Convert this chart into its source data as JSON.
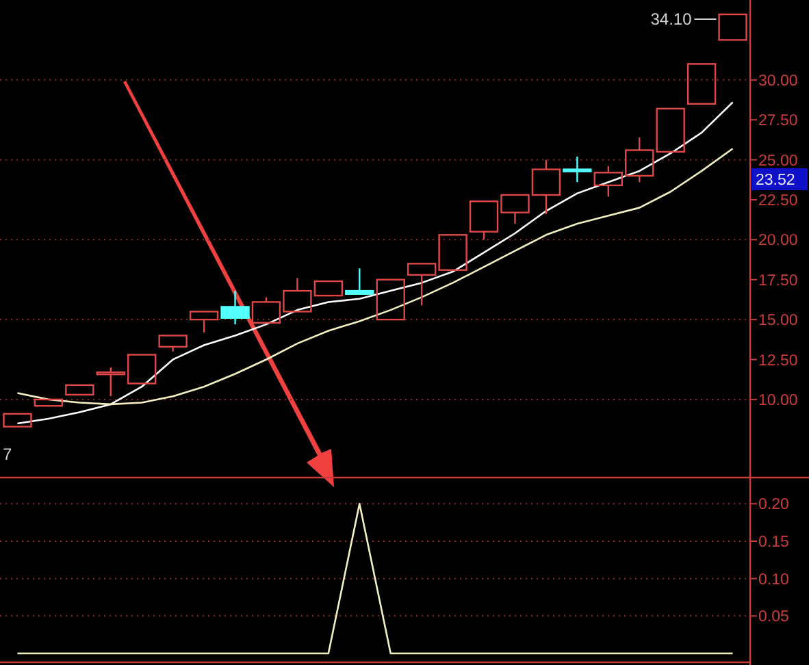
{
  "chart_data": [
    {
      "type": "candlestick",
      "categories": [
        null,
        null,
        null,
        null,
        null,
        null,
        null,
        null,
        null,
        null,
        null,
        null,
        null,
        null,
        null,
        null,
        null,
        null,
        null,
        null,
        null,
        null,
        null,
        null
      ],
      "ohlc": [
        [
          8.3,
          9.1,
          8.3,
          9.1
        ],
        [
          9.6,
          10.0,
          9.6,
          10.0
        ],
        [
          10.3,
          10.9,
          10.3,
          10.9
        ],
        [
          11.6,
          12.0,
          10.2,
          11.7
        ],
        [
          11.0,
          12.8,
          11.0,
          12.8
        ],
        [
          13.3,
          14.0,
          13.0,
          14.0
        ],
        [
          15.0,
          15.5,
          14.2,
          15.5
        ],
        [
          15.8,
          16.8,
          14.7,
          15.1
        ],
        [
          14.8,
          16.4,
          14.8,
          16.1
        ],
        [
          15.5,
          17.6,
          15.5,
          16.8
        ],
        [
          16.5,
          17.4,
          16.5,
          17.4
        ],
        [
          16.8,
          18.2,
          16.6,
          16.6
        ],
        [
          15.0,
          17.5,
          15.0,
          17.5
        ],
        [
          17.8,
          18.5,
          15.9,
          18.5
        ],
        [
          18.1,
          20.3,
          18.1,
          20.3
        ],
        [
          20.5,
          22.4,
          20.0,
          22.4
        ],
        [
          21.7,
          22.8,
          21.0,
          22.8
        ],
        [
          22.8,
          25.0,
          21.6,
          24.4
        ],
        [
          24.4,
          25.2,
          23.6,
          24.3
        ],
        [
          23.4,
          24.6,
          22.7,
          24.2
        ],
        [
          24.0,
          26.4,
          23.6,
          25.6
        ],
        [
          25.5,
          28.2,
          25.5,
          28.2
        ],
        [
          28.5,
          31.0,
          28.5,
          31.0
        ],
        [
          32.5,
          34.1,
          32.5,
          34.1
        ]
      ],
      "colors": [
        "#e04848",
        "#e04848",
        "#e04848",
        "#e04848",
        "#e04848",
        "#e04848",
        "#e04848",
        "#54ffff",
        "#e04848",
        "#e04848",
        "#e04848",
        "#54ffff",
        "#e04848",
        "#e04848",
        "#e04848",
        "#e04848",
        "#e04848",
        "#e04848",
        "#54ffff",
        "#e04848",
        "#e04848",
        "#e04848",
        "#e04848",
        "#e04848"
      ],
      "series": [
        {
          "type": "line",
          "color": "#ffffff",
          "values": [
            8.5,
            8.8,
            9.2,
            9.7,
            10.8,
            12.5,
            13.4,
            14.0,
            14.7,
            15.6,
            16.1,
            16.3,
            16.8,
            17.3,
            18.0,
            19.2,
            20.4,
            21.8,
            22.9,
            23.6,
            24.3,
            25.4,
            26.7,
            28.6
          ]
        },
        {
          "type": "line",
          "color": "#f2f0c0",
          "values": [
            10.4,
            10.0,
            9.8,
            9.7,
            9.8,
            10.2,
            10.8,
            11.6,
            12.5,
            13.5,
            14.3,
            14.9,
            15.6,
            16.4,
            17.3,
            18.3,
            19.3,
            20.3,
            21.0,
            21.5,
            22.0,
            23.0,
            24.3,
            25.7
          ]
        }
      ],
      "ylim": [
        5.2,
        35
      ],
      "yticks": [
        {
          "value": 10,
          "label": "10.00"
        },
        {
          "value": 12.5,
          "label": "12.50"
        },
        {
          "value": 15,
          "label": "15.00"
        },
        {
          "value": 17.5,
          "label": "17.50"
        },
        {
          "value": 20,
          "label": "20.00"
        },
        {
          "value": 22.5,
          "label": "22.50"
        },
        {
          "value": 25,
          "label": "25.00"
        },
        {
          "value": 27.5,
          "label": "27.50"
        },
        {
          "value": 30,
          "label": "30.00"
        }
      ],
      "grid": "y",
      "annotations": [
        "7",
        "34.10",
        "23.52"
      ]
    },
    {
      "type": "line",
      "categories": [
        null,
        null,
        null,
        null,
        null,
        null,
        null,
        null,
        null,
        null,
        null,
        null,
        null,
        null,
        null,
        null,
        null,
        null,
        null,
        null,
        null,
        null,
        null,
        null
      ],
      "series": [
        {
          "color": "#f2f0c0",
          "values": [
            0,
            0,
            0,
            0,
            0,
            0,
            0,
            0,
            0,
            0,
            0,
            0.2,
            0,
            0,
            0,
            0,
            0,
            0,
            0,
            0,
            0,
            0,
            0,
            0
          ]
        }
      ],
      "ylim": [
        -0.01,
        0.235
      ],
      "yticks": [
        {
          "value": 0.05,
          "label": "0.05"
        },
        {
          "value": 0.1,
          "label": "0.10"
        },
        {
          "value": 0.15,
          "label": "0.15"
        },
        {
          "value": 0.2,
          "label": "0.20"
        }
      ],
      "grid": "y"
    }
  ]
}
